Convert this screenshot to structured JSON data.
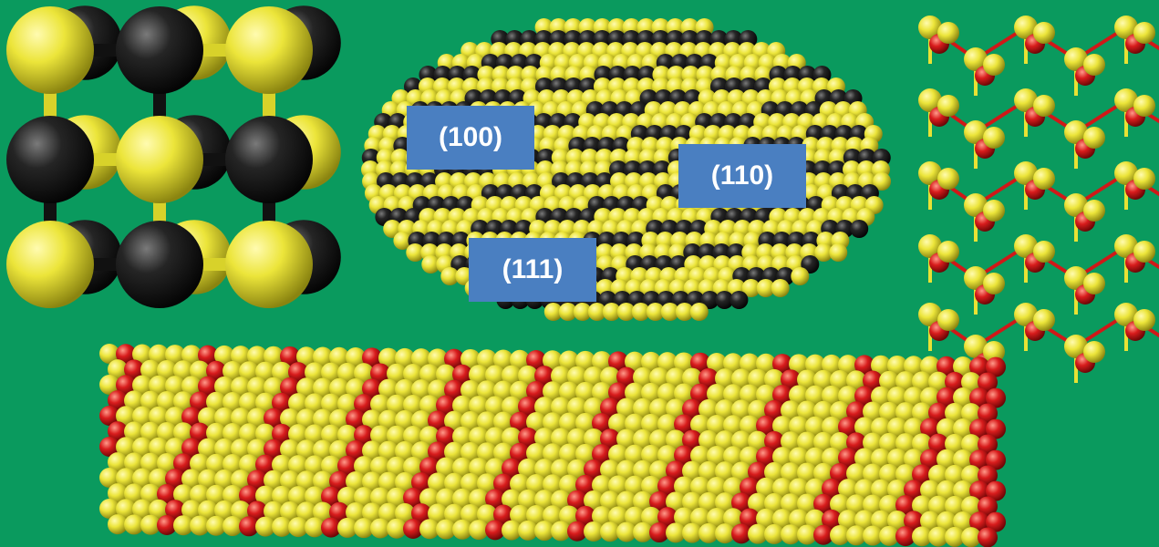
{
  "background_color": "#0a9a5e",
  "atom_colors": {
    "yellow": "#e8e234",
    "black": "#1c1c1c",
    "red": "#d01818"
  },
  "panels": [
    {
      "id": "rocksalt-unit-cell",
      "atoms": [
        "yellow",
        "black"
      ]
    },
    {
      "id": "nanocrystal-facets",
      "atoms": [
        "yellow",
        "black"
      ]
    },
    {
      "id": "wurtzite-lattice",
      "atoms": [
        "yellow",
        "red"
      ]
    },
    {
      "id": "nanorod",
      "atoms": [
        "yellow",
        "red"
      ]
    }
  ],
  "facet_labels": {
    "f100": "(100)",
    "f110": "(110)",
    "f111": "(111)"
  },
  "label_box_color": "#4a7fc1"
}
